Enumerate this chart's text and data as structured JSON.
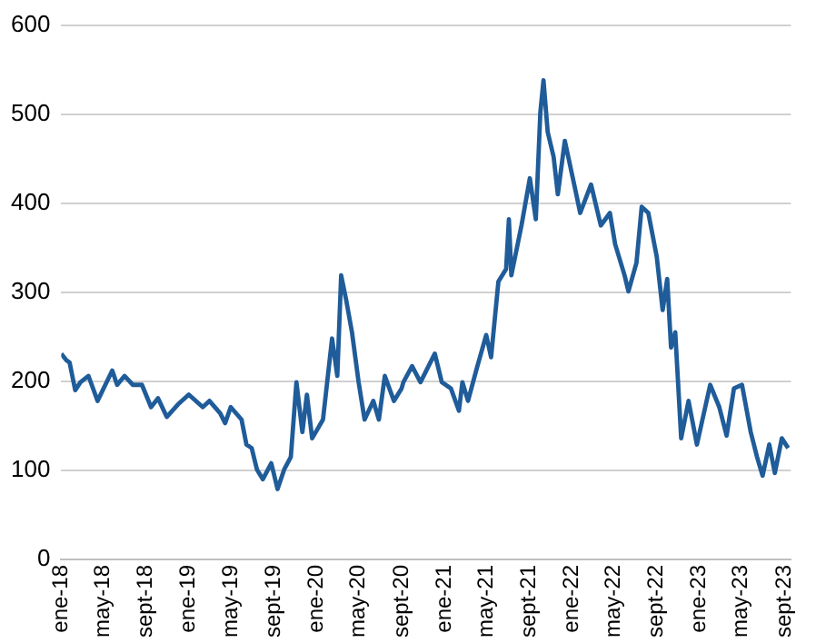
{
  "chart_data": {
    "type": "line",
    "x": [
      "2018-01-01",
      "2018-01-15",
      "2018-01-25",
      "2018-02-10",
      "2018-02-25",
      "2018-03-20",
      "2018-04-15",
      "2018-05-27",
      "2018-06-10",
      "2018-07-01",
      "2018-07-25",
      "2018-08-20",
      "2018-09-15",
      "2018-10-05",
      "2018-10-30",
      "2018-12-01",
      "2019-01-01",
      "2019-02-10",
      "2019-03-01",
      "2019-04-01",
      "2019-04-15",
      "2019-05-01",
      "2019-06-01",
      "2019-06-15",
      "2019-06-30",
      "2019-07-15",
      "2019-08-01",
      "2019-08-25",
      "2019-09-12",
      "2019-10-01",
      "2019-10-20",
      "2019-11-05",
      "2019-11-22",
      "2019-12-05",
      "2019-12-20",
      "2020-01-20",
      "2020-02-15",
      "2020-03-01",
      "2020-03-12",
      "2020-03-27",
      "2020-04-12",
      "2020-05-01",
      "2020-05-18",
      "2020-06-12",
      "2020-06-28",
      "2020-07-15",
      "2020-08-10",
      "2020-09-01",
      "2020-09-06",
      "2020-10-01",
      "2020-10-25",
      "2020-12-05",
      "2020-12-25",
      "2021-01-20",
      "2021-02-12",
      "2021-02-22",
      "2021-03-10",
      "2021-04-03",
      "2021-05-01",
      "2021-05-15",
      "2021-06-05",
      "2021-06-27",
      "2021-07-05",
      "2021-07-12",
      "2021-08-10",
      "2021-09-03",
      "2021-09-20",
      "2021-10-03",
      "2021-10-12",
      "2021-10-24",
      "2021-11-10",
      "2021-11-22",
      "2021-12-12",
      "2022-01-10",
      "2022-01-25",
      "2022-02-25",
      "2022-03-25",
      "2022-04-20",
      "2022-05-05",
      "2022-06-01",
      "2022-06-12",
      "2022-07-05",
      "2022-07-20",
      "2022-08-08",
      "2022-09-01",
      "2022-09-18",
      "2022-10-01",
      "2022-10-12",
      "2022-10-24",
      "2022-11-10",
      "2022-12-01",
      "2022-12-25",
      "2023-02-01",
      "2023-02-27",
      "2023-03-20",
      "2023-04-10",
      "2023-05-03",
      "2023-05-28",
      "2023-06-15",
      "2023-07-01",
      "2023-07-20",
      "2023-08-05",
      "2023-08-25",
      "2023-09-12"
    ],
    "series": [
      {
        "color": "#1f5c99",
        "values": [
          231,
          224,
          221,
          190,
          199,
          206,
          178,
          212,
          196,
          206,
          196,
          196,
          171,
          181,
          160,
          174,
          185,
          171,
          178,
          164,
          153,
          171,
          157,
          129,
          125,
          101,
          90,
          108,
          79,
          101,
          115,
          199,
          143,
          185,
          136,
          157,
          248,
          206,
          319,
          290,
          255,
          199,
          157,
          178,
          157,
          206,
          178,
          192,
          199,
          217,
          199,
          231,
          199,
          192,
          167,
          199,
          178,
          213,
          252,
          227,
          312,
          326,
          382,
          319,
          375,
          428,
          382,
          502,
          538,
          480,
          452,
          410,
          470,
          417,
          389,
          421,
          375,
          389,
          354,
          319,
          301,
          333,
          396,
          389,
          340,
          280,
          315,
          238,
          255,
          136,
          178,
          129,
          196,
          171,
          139,
          192,
          196,
          143,
          115,
          94,
          129,
          97,
          136,
          125
        ]
      }
    ],
    "xlim": [
      "2018-01-01",
      "2023-09-20"
    ],
    "xticks": [
      {
        "value": "2018-01-01",
        "label": "ene-18"
      },
      {
        "value": "2018-05-01",
        "label": "may-18"
      },
      {
        "value": "2018-09-01",
        "label": "sept-18"
      },
      {
        "value": "2019-01-01",
        "label": "ene-19"
      },
      {
        "value": "2019-05-01",
        "label": "may-19"
      },
      {
        "value": "2019-09-01",
        "label": "sept-19"
      },
      {
        "value": "2020-01-01",
        "label": "ene-20"
      },
      {
        "value": "2020-05-01",
        "label": "may-20"
      },
      {
        "value": "2020-09-01",
        "label": "sept-20"
      },
      {
        "value": "2021-01-01",
        "label": "ene-21"
      },
      {
        "value": "2021-05-01",
        "label": "may-21"
      },
      {
        "value": "2021-09-01",
        "label": "sept-21"
      },
      {
        "value": "2022-01-01",
        "label": "ene-22"
      },
      {
        "value": "2022-05-01",
        "label": "may-22"
      },
      {
        "value": "2022-09-01",
        "label": "sept-22"
      },
      {
        "value": "2023-01-01",
        "label": "ene-23"
      },
      {
        "value": "2023-05-01",
        "label": "may-23"
      },
      {
        "value": "2023-09-01",
        "label": "sept-23"
      }
    ],
    "ylim": [
      0,
      600
    ],
    "yticks": [
      0,
      100,
      200,
      300,
      400,
      500,
      600
    ],
    "grid": "y",
    "legend": false,
    "marker": "none",
    "line_style": "solid"
  }
}
